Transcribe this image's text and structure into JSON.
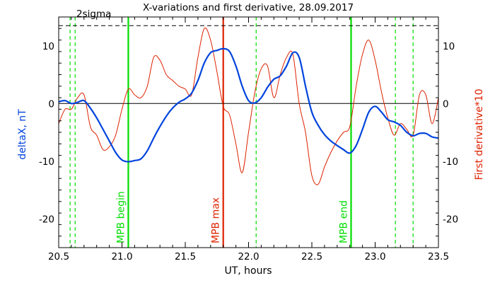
{
  "chart_data": {
    "type": "line",
    "title": "X-variations and first derivative, 28.09.2017",
    "xlabel": "UT, hours",
    "ylabel_left": "deltaX, nT",
    "ylabel_right": "First derivative*10",
    "xlim": [
      20.5,
      23.5
    ],
    "ylim": [
      -25,
      15
    ],
    "xticks": [
      20.5,
      21.0,
      21.5,
      22.0,
      22.5,
      23.0,
      23.5
    ],
    "xtick_labels": [
      "20.5",
      "21.0",
      "21.5",
      "22.0",
      "22.5",
      "23.0",
      "23.5"
    ],
    "yticks": [
      -20,
      -10,
      0,
      10
    ],
    "ytick_labels": [
      "-20",
      "-10",
      "0",
      "10"
    ],
    "grid": false,
    "threshold": {
      "value": 13.5,
      "label": "2sigma",
      "color": "#000000"
    },
    "zero_line": 0,
    "vlines": [
      {
        "x": 21.05,
        "label": "MPB begin",
        "color": "#00dd00",
        "style": "solid"
      },
      {
        "x": 21.8,
        "label": "MPB max",
        "color": "#dd2200",
        "style": "solid"
      },
      {
        "x": 22.81,
        "label": "MPB end",
        "color": "#00dd00",
        "style": "solid"
      },
      {
        "x": 20.59,
        "label": "",
        "color": "#00dd00",
        "style": "dashed"
      },
      {
        "x": 20.63,
        "label": "",
        "color": "#00dd00",
        "style": "dashed"
      },
      {
        "x": 22.06,
        "label": "",
        "color": "#00dd00",
        "style": "dashed"
      },
      {
        "x": 23.16,
        "label": "",
        "color": "#00dd00",
        "style": "dashed"
      },
      {
        "x": 23.3,
        "label": "",
        "color": "#00dd00",
        "style": "dashed"
      }
    ],
    "series": [
      {
        "axis": "left",
        "color": "#0044dd",
        "width": 2.2,
        "x": [
          20.5,
          20.55,
          20.6,
          20.65,
          20.7,
          20.75,
          20.8,
          20.85,
          20.9,
          20.95,
          21.0,
          21.05,
          21.1,
          21.15,
          21.2,
          21.25,
          21.3,
          21.35,
          21.4,
          21.45,
          21.5,
          21.55,
          21.6,
          21.65,
          21.7,
          21.75,
          21.8,
          21.85,
          21.9,
          21.95,
          22.0,
          22.05,
          22.1,
          22.15,
          22.2,
          22.25,
          22.3,
          22.35,
          22.4,
          22.45,
          22.5,
          22.55,
          22.6,
          22.65,
          22.7,
          22.75,
          22.8,
          22.85,
          22.9,
          22.95,
          23.0,
          23.05,
          23.1,
          23.15,
          23.2,
          23.25,
          23.3,
          23.35,
          23.4,
          23.45,
          23.5
        ],
        "values": [
          0.3,
          0.5,
          0.0,
          0.2,
          0.5,
          -0.8,
          -2.5,
          -4.5,
          -6.5,
          -8.5,
          -9.8,
          -10.1,
          -9.9,
          -9.6,
          -8.2,
          -6.0,
          -4.0,
          -2.2,
          -0.8,
          0.2,
          0.8,
          1.8,
          4.0,
          7.0,
          8.8,
          9.2,
          9.5,
          9.0,
          6.5,
          3.0,
          0.5,
          0.1,
          1.0,
          2.8,
          4.2,
          4.8,
          6.5,
          8.8,
          8.0,
          3.0,
          -1.5,
          -3.8,
          -5.4,
          -6.5,
          -7.3,
          -8.0,
          -8.6,
          -7.3,
          -4.5,
          -1.5,
          -0.5,
          -1.5,
          -2.8,
          -3.2,
          -3.8,
          -5.0,
          -5.6,
          -5.2,
          -5.2,
          -5.8,
          -6.0
        ]
      },
      {
        "axis": "right",
        "color": "#dd2200",
        "width": 1,
        "x": [
          20.5,
          20.55,
          20.6,
          20.65,
          20.7,
          20.75,
          20.8,
          20.85,
          20.9,
          20.95,
          21.0,
          21.05,
          21.1,
          21.15,
          21.2,
          21.25,
          21.3,
          21.35,
          21.4,
          21.45,
          21.5,
          21.55,
          21.6,
          21.65,
          21.7,
          21.75,
          21.8,
          21.85,
          21.9,
          21.95,
          22.0,
          22.05,
          22.1,
          22.15,
          22.2,
          22.25,
          22.3,
          22.35,
          22.4,
          22.45,
          22.5,
          22.55,
          22.6,
          22.65,
          22.7,
          22.75,
          22.8,
          22.85,
          22.9,
          22.95,
          23.0,
          23.05,
          23.1,
          23.15,
          23.2,
          23.25,
          23.3,
          23.35,
          23.4,
          23.45,
          23.5
        ],
        "values": [
          -3.5,
          -1.0,
          -1.0,
          1.0,
          1.5,
          -4.0,
          -5.5,
          -8.0,
          -7.5,
          -5.5,
          -1.0,
          2.5,
          1.5,
          1.0,
          3.0,
          8.0,
          7.5,
          5.0,
          4.0,
          3.0,
          2.5,
          1.5,
          8.0,
          13.0,
          11.0,
          5.5,
          -0.5,
          -2.0,
          -7.0,
          -12.0,
          -5.0,
          2.0,
          6.0,
          6.5,
          1.0,
          5.0,
          8.0,
          8.5,
          0.0,
          -5.0,
          -12.5,
          -14.0,
          -11.0,
          -8.5,
          -6.5,
          -5.0,
          -4.0,
          3.0,
          8.5,
          11.0,
          7.5,
          2.0,
          -2.5,
          -5.5,
          -3.5,
          -4.5,
          -5.5,
          1.5,
          1.5,
          -3.5,
          1.0
        ]
      }
    ]
  }
}
